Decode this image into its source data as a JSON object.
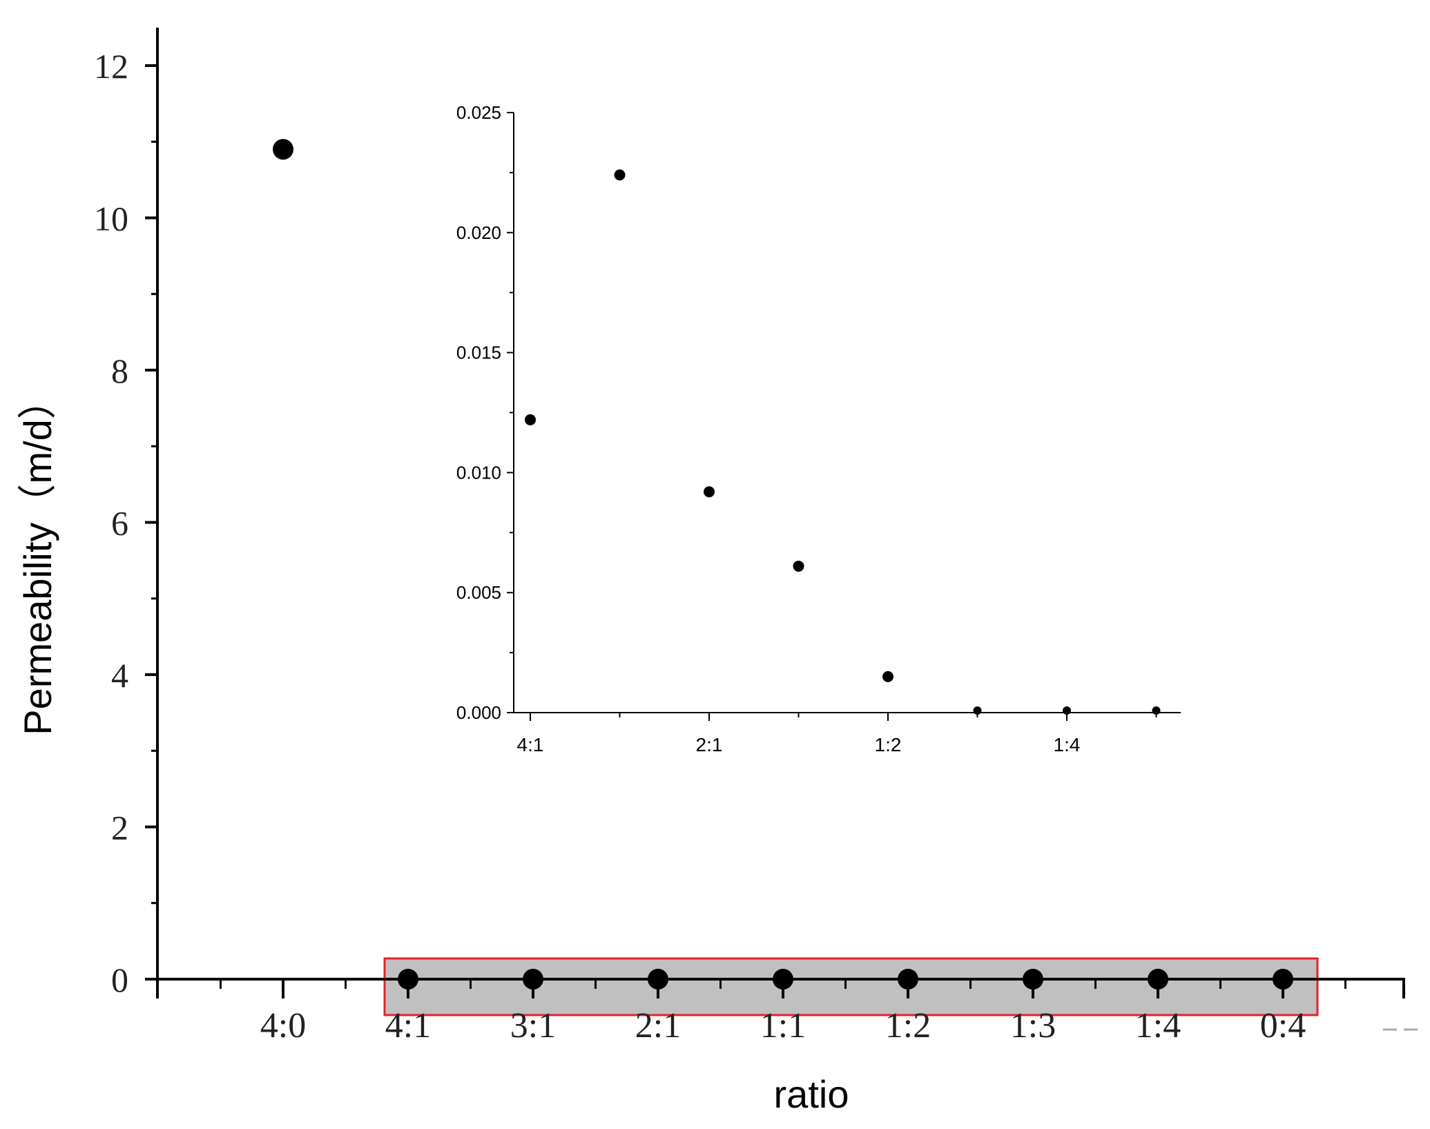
{
  "chart_data": [
    {
      "type": "scatter",
      "id": "main",
      "title": "",
      "xlabel": "ratio",
      "ylabel": "Permeability（m/d）",
      "categories": [
        "4:0",
        "4:1",
        "3:1",
        "2:1",
        "1:1",
        "1:2",
        "1:3",
        "1:4",
        "0:4"
      ],
      "values": [
        10.9,
        0,
        0,
        0,
        0,
        0,
        0,
        0,
        0
      ],
      "ylim": [
        0,
        12
      ],
      "yticks": [
        0,
        2,
        4,
        6,
        8,
        10,
        12
      ],
      "ytick_labels": [
        "0",
        "2",
        "4",
        "6",
        "8",
        "10",
        "12"
      ],
      "highlight_box": {
        "from": "4:1",
        "to": "0:4",
        "fill": "#c0c0c0",
        "stroke": "#e8202a"
      },
      "marker_color": "#000000",
      "grid": false,
      "legend": "none"
    },
    {
      "type": "scatter",
      "id": "inset",
      "title": "",
      "xlabel": "",
      "ylabel": "",
      "categories": [
        "4:1",
        "3:1",
        "2:1",
        "1:1",
        "1:2",
        "1:3",
        "1:4",
        "0:4"
      ],
      "tick_labels": [
        "4:1",
        "",
        "2:1",
        "",
        "1:2",
        "",
        "1:4",
        ""
      ],
      "values": [
        0.0122,
        0.0224,
        0.0092,
        0.0061,
        0.0015,
        0.0,
        0.0,
        0.0
      ],
      "ylim": [
        0,
        0.025
      ],
      "yticks": [
        0,
        0.005,
        0.01,
        0.015,
        0.02,
        0.025
      ],
      "ytick_labels": [
        "0.000",
        "0.005",
        "0.010",
        "0.015",
        "0.020",
        "0.025"
      ],
      "marker_color": "#000000",
      "grid": false,
      "legend": "none"
    }
  ]
}
